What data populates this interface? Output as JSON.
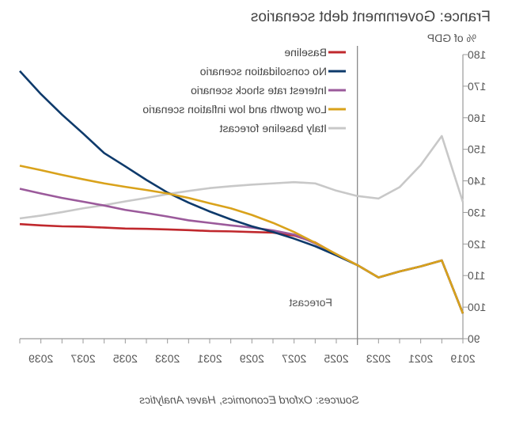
{
  "chart_data": {
    "type": "line",
    "title": "France: Government debt scenarios",
    "ylabel": "% of GDP",
    "xlabel": "",
    "ylim": [
      90,
      180
    ],
    "yticks": [
      90,
      100,
      110,
      120,
      130,
      140,
      150,
      160,
      170,
      180
    ],
    "xlim": [
      2019,
      2040
    ],
    "xtick_labels": [
      "2019",
      "2021",
      "2023",
      "2025",
      "2027",
      "2029",
      "2031",
      "2033",
      "2035",
      "2037",
      "2039"
    ],
    "x": [
      2019,
      2020,
      2021,
      2022,
      2023,
      2024,
      2025,
      2026,
      2027,
      2028,
      2029,
      2030,
      2031,
      2032,
      2033,
      2034,
      2035,
      2036,
      2037,
      2038,
      2039,
      2040
    ],
    "annotation": "Forecast",
    "forecast_start": 2024,
    "legend_position": "top",
    "source": "Sources: Oxford Economics, Haver Analytics",
    "series": [
      {
        "name": "Baseline",
        "color": "#c0282d",
        "values": [
          98,
          114.8,
          112.9,
          111.3,
          109.4,
          113.3,
          116.7,
          120.5,
          122.7,
          123.6,
          123.8,
          124,
          124.1,
          124.4,
          124.6,
          124.8,
          124.9,
          125.2,
          125.5,
          125.6,
          125.9,
          126.3
        ]
      },
      {
        "name": "No consolidation scenario",
        "color": "#0e3a6b",
        "values": [
          98,
          114.8,
          112.9,
          111.3,
          109.4,
          113.3,
          116.4,
          119.3,
          121.7,
          123.8,
          125.6,
          127.8,
          130.3,
          133.1,
          136.3,
          140.3,
          144.6,
          148.8,
          155,
          161,
          167.5,
          174.8
        ]
      },
      {
        "name": "Interest rate shock scenario",
        "color": "#9b5a9b",
        "values": [
          98,
          114.8,
          112.9,
          111.3,
          109.4,
          113.3,
          116.8,
          120.2,
          123,
          124.3,
          125.2,
          125.9,
          126.7,
          127.5,
          128.7,
          129.8,
          130.8,
          132.2,
          133.4,
          134.6,
          136,
          137.5
        ]
      },
      {
        "name": "Low growth and low inflation scenario",
        "color": "#d9a21b",
        "values": [
          98,
          114.8,
          112.9,
          111.3,
          109.4,
          113.3,
          116.8,
          120.4,
          123.8,
          126.7,
          129.2,
          131.3,
          132.9,
          134.6,
          136,
          137.1,
          138.1,
          139.2,
          140.5,
          141.9,
          143.4,
          144.8
        ]
      },
      {
        "name": "Italy baseline forecast",
        "color": "#c8c8c8",
        "values": [
          133.3,
          154.2,
          145,
          138,
          134.4,
          135.2,
          136.9,
          139.2,
          139.6,
          139.2,
          138.8,
          138.3,
          137.7,
          136.8,
          135.8,
          134.6,
          133.5,
          132.3,
          131.3,
          130.1,
          129,
          128.1
        ]
      }
    ]
  }
}
